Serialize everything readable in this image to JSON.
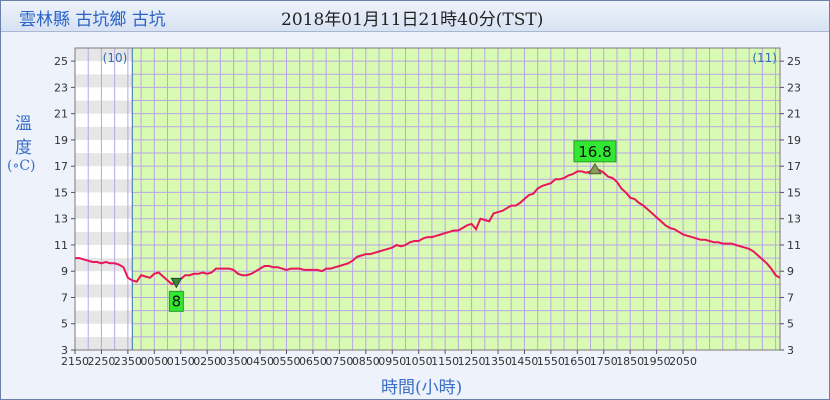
{
  "header": {
    "station": "雲林縣 古坑鄉 古坑",
    "obs_time": "2018年01月11日21時40分(TST)"
  },
  "y_axis": {
    "label_top": "溫",
    "label_bottom": "度",
    "unit": "(∘C)"
  },
  "x_axis": {
    "label": "時間(小時)"
  },
  "day_markers": {
    "left": "(10)",
    "right": "(11)"
  },
  "colors": {
    "plot_bg": "#d9fab3",
    "band_white": "#ffffff",
    "band_grey": "#e6e6e6",
    "grid": "#b9a6e6",
    "line": "#e8175d",
    "marker_bg": "#32e832"
  },
  "chart_data": {
    "type": "line",
    "title": "",
    "xlabel": "時間(小時)",
    "ylabel": "溫度 (∘C)",
    "ylim": [
      3,
      26
    ],
    "y_ticks": [
      3,
      5,
      7,
      9,
      11,
      13,
      15,
      17,
      19,
      21,
      23,
      25
    ],
    "x_tick_labels": [
      "2150",
      "2250",
      "2350",
      "0050",
      "0150",
      "0250",
      "0350",
      "0450",
      "0550",
      "0650",
      "0750",
      "0850",
      "0950",
      "1050",
      "1150",
      "1250",
      "1350",
      "1450",
      "1550",
      "1650",
      "1750",
      "1850",
      "1950",
      "2050"
    ],
    "minute_step": 10,
    "series": [
      {
        "values": [
          10.0,
          10.0,
          9.9,
          9.8,
          9.7,
          9.7,
          9.6,
          9.7,
          9.6,
          9.6,
          9.5,
          9.3,
          8.5,
          8.3,
          8.2,
          8.7,
          8.6,
          8.5,
          8.8,
          8.9,
          8.6,
          8.3,
          8.0,
          8.2,
          8.4,
          8.7,
          8.7,
          8.8,
          8.8,
          8.9,
          8.8,
          8.9,
          9.2,
          9.2,
          9.2,
          9.2,
          9.1,
          8.8,
          8.7,
          8.7,
          8.8,
          9.0,
          9.2,
          9.4,
          9.4,
          9.3,
          9.3,
          9.2,
          9.1,
          9.2,
          9.2,
          9.2,
          9.1,
          9.1,
          9.1,
          9.1,
          9.0,
          9.2,
          9.2,
          9.3,
          9.4,
          9.5,
          9.6,
          9.8,
          10.1,
          10.2,
          10.3,
          10.3,
          10.4,
          10.5,
          10.6,
          10.7,
          10.8,
          11.0,
          10.9,
          11.0,
          11.2,
          11.3,
          11.3,
          11.5,
          11.6,
          11.6,
          11.7,
          11.8,
          11.9,
          12.0,
          12.1,
          12.1,
          12.3,
          12.5,
          12.6,
          12.2,
          13.0,
          12.9,
          12.8,
          13.4,
          13.5,
          13.6,
          13.8,
          14.0,
          14.0,
          14.2,
          14.5,
          14.8,
          14.9,
          15.3,
          15.5,
          15.6,
          15.7,
          16.0,
          16.0,
          16.1,
          16.3,
          16.4,
          16.6,
          16.6,
          16.5,
          16.6,
          16.8,
          16.7,
          16.5,
          16.2,
          16.1,
          15.8,
          15.3,
          15.0,
          14.6,
          14.5,
          14.2,
          14.0,
          13.7,
          13.4,
          13.1,
          12.8,
          12.5,
          12.3,
          12.2,
          12.0,
          11.8,
          11.7,
          11.6,
          11.5,
          11.4,
          11.4,
          11.3,
          11.2,
          11.2,
          11.1,
          11.1,
          11.1,
          11.0,
          10.9,
          10.8,
          10.7,
          10.5,
          10.2,
          9.9,
          9.6,
          9.2,
          8.7,
          8.5
        ]
      }
    ],
    "annotations": [
      {
        "label": "8",
        "index": 23,
        "value": 8,
        "kind": "min"
      },
      {
        "label": "16.8",
        "index": 118,
        "value": 16.8,
        "kind": "max"
      }
    ]
  }
}
